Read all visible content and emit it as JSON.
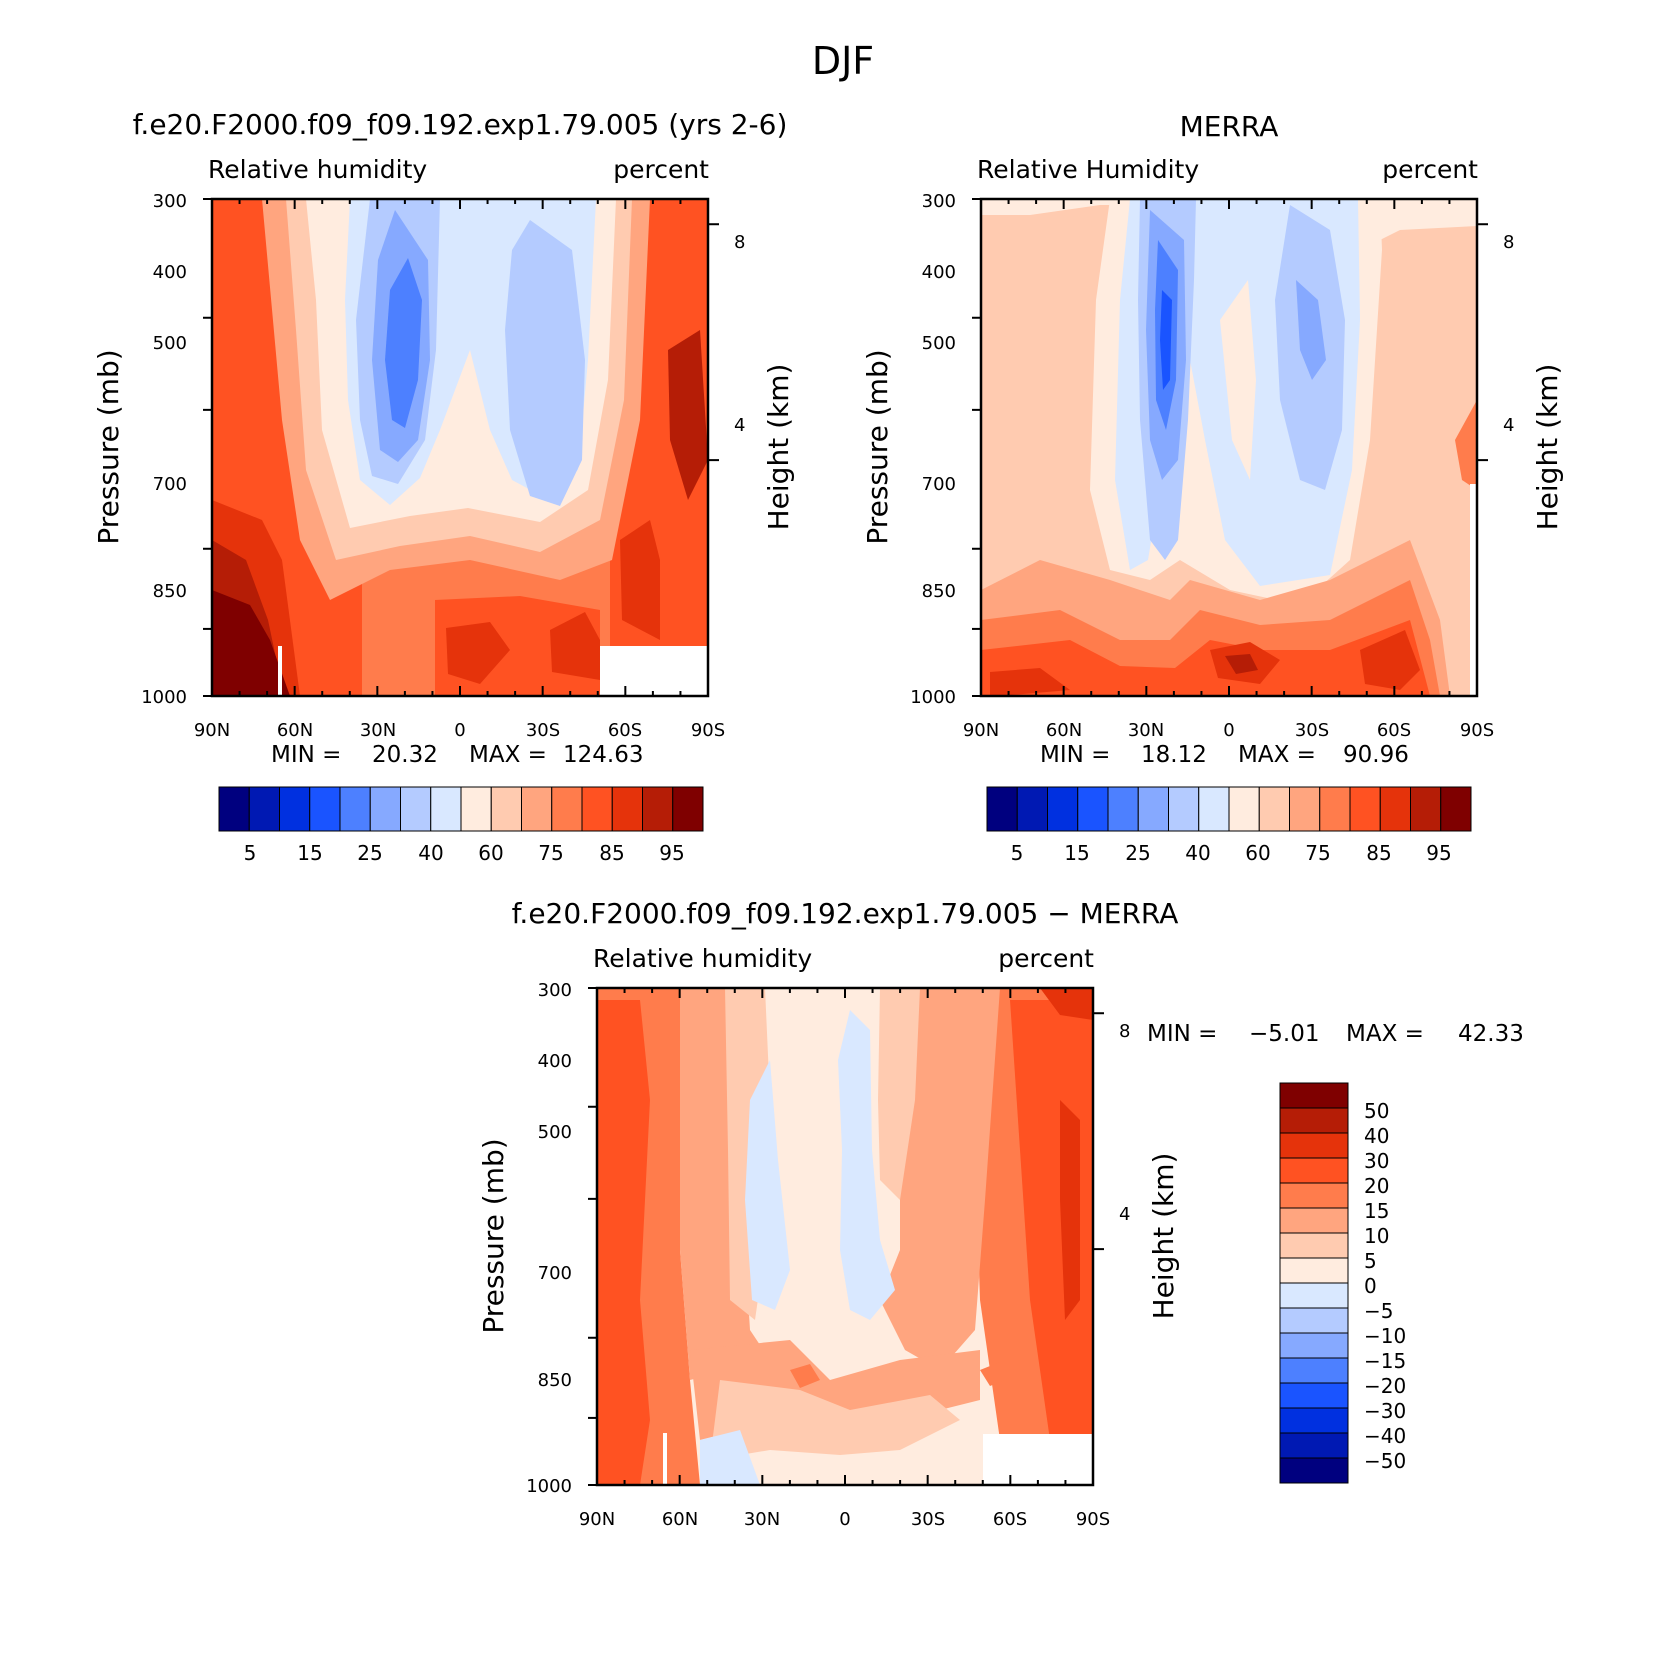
{
  "figure": {
    "title": "DJF"
  },
  "chart_data": [
    {
      "type": "heatmap",
      "title": "f.e20.F2000.f09_f09.192.exp1.79.005 (yrs 2-6)",
      "left_label": "Relative humidity",
      "right_label": "percent",
      "ylabel": "Pressure (mb)",
      "ylabel_right": "Height (km)",
      "x_ticks": [
        "90N",
        "60N",
        "30N",
        "0",
        "30S",
        "60S",
        "90S"
      ],
      "y_ticks": [
        "300",
        "400",
        "500",
        "700",
        "850",
        "1000"
      ],
      "height_ticks": [
        "8",
        "4"
      ],
      "ylim": [
        1000,
        300
      ],
      "xlim": [
        90,
        -90
      ],
      "min_label": "MIN =",
      "min_value": "20.32",
      "max_label": "MAX =",
      "max_value": "124.63",
      "colorbar": {
        "labels": [
          "5",
          "15",
          "25",
          "40",
          "60",
          "75",
          "85",
          "95"
        ],
        "colors": [
          "#00007f",
          "#0019b3",
          "#0030e0",
          "#1a54ff",
          "#4d80ff",
          "#86a9ff",
          "#b4cbff",
          "#d9e8ff",
          "#ffecdf",
          "#ffcbb0",
          "#ffa57f",
          "#ff7c4c",
          "#ff5222",
          "#e5330b",
          "#b51d06",
          "#7f0000"
        ]
      }
    },
    {
      "type": "heatmap",
      "title": "MERRA",
      "left_label": "Relative Humidity",
      "right_label": "percent",
      "ylabel": "Pressure (mb)",
      "ylabel_right": "Height (km)",
      "x_ticks": [
        "90N",
        "60N",
        "30N",
        "0",
        "30S",
        "60S",
        "90S"
      ],
      "y_ticks": [
        "300",
        "400",
        "500",
        "700",
        "850",
        "1000"
      ],
      "height_ticks": [
        "8",
        "4"
      ],
      "ylim": [
        1000,
        300
      ],
      "xlim": [
        90,
        -90
      ],
      "min_label": "MIN =",
      "min_value": "18.12",
      "max_label": "MAX =",
      "max_value": "90.96",
      "colorbar": {
        "labels": [
          "5",
          "15",
          "25",
          "40",
          "60",
          "75",
          "85",
          "95"
        ],
        "colors": [
          "#00007f",
          "#0019b3",
          "#0030e0",
          "#1a54ff",
          "#4d80ff",
          "#86a9ff",
          "#b4cbff",
          "#d9e8ff",
          "#ffecdf",
          "#ffcbb0",
          "#ffa57f",
          "#ff7c4c",
          "#ff5222",
          "#e5330b",
          "#b51d06",
          "#7f0000"
        ]
      }
    },
    {
      "type": "heatmap",
      "title": "f.e20.F2000.f09_f09.192.exp1.79.005 − MERRA",
      "left_label": "Relative humidity",
      "right_label": "percent",
      "ylabel": "Pressure (mb)",
      "ylabel_right": "Height (km)",
      "x_ticks": [
        "90N",
        "60N",
        "30N",
        "0",
        "30S",
        "60S",
        "90S"
      ],
      "y_ticks": [
        "300",
        "400",
        "500",
        "700",
        "850",
        "1000"
      ],
      "height_ticks": [
        "8",
        "4"
      ],
      "ylim": [
        1000,
        300
      ],
      "xlim": [
        90,
        -90
      ],
      "min_label": "MIN =",
      "min_value": "−5.01",
      "max_label": "MAX =",
      "max_value": "42.33",
      "colorbar": {
        "labels": [
          "50",
          "40",
          "30",
          "20",
          "15",
          "10",
          "5",
          "0",
          "−5",
          "−10",
          "−15",
          "−20",
          "−30",
          "−40",
          "−50"
        ],
        "colors": [
          "#7f0000",
          "#b51d06",
          "#e5330b",
          "#ff5222",
          "#ff7c4c",
          "#ffa57f",
          "#ffcbb0",
          "#ffecdf",
          "#d9e8ff",
          "#b4cbff",
          "#86a9ff",
          "#4d80ff",
          "#1a54ff",
          "#0030e0",
          "#0019b3",
          "#00007f"
        ]
      }
    }
  ]
}
